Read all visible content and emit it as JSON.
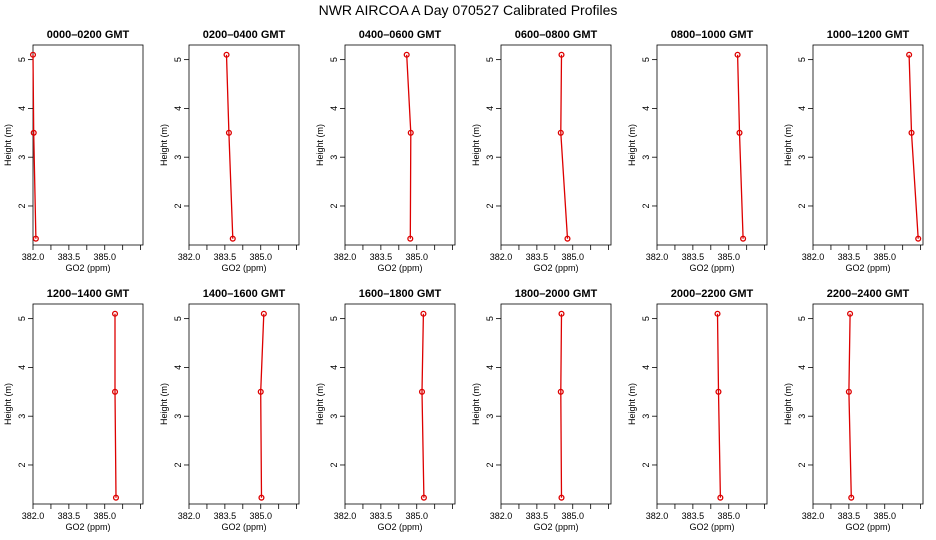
{
  "figure_title": "NWR AIRCOA A  Day 070527  Calibrated Profiles",
  "colors": {
    "series": "#dd0000",
    "axis": "#000000"
  },
  "chart_data": [
    {
      "type": "line",
      "title": "0000–0200 GMT",
      "xlabel": "GO2 (ppm)",
      "ylabel": "Height (m)",
      "xlim": [
        382.0,
        386.6
      ],
      "ylim": [
        1.2,
        5.3
      ],
      "xticks": [
        382.0,
        383.5,
        385.0
      ],
      "xtick_labels": [
        "382.0",
        "383.5",
        "385.0"
      ],
      "yticks": [
        2,
        3,
        4,
        5
      ],
      "ytick_labels": [
        "2",
        "3",
        "4",
        "5"
      ],
      "x": [
        382.0,
        382.03,
        382.12
      ],
      "y": [
        5.1,
        3.5,
        1.33
      ]
    },
    {
      "type": "line",
      "title": "0200–0400 GMT",
      "xlabel": "GO2 (ppm)",
      "ylabel": "Height (m)",
      "xlim": [
        382.0,
        386.6
      ],
      "ylim": [
        1.2,
        5.3
      ],
      "xticks": [
        382.0,
        383.5,
        385.0
      ],
      "xtick_labels": [
        "382.0",
        "383.5",
        "385.0"
      ],
      "yticks": [
        2,
        3,
        4,
        5
      ],
      "ytick_labels": [
        "2",
        "3",
        "4",
        "5"
      ],
      "x": [
        383.57,
        383.67,
        383.83
      ],
      "y": [
        5.1,
        3.5,
        1.33
      ]
    },
    {
      "type": "line",
      "title": "0400–0600 GMT",
      "xlabel": "GO2 (ppm)",
      "ylabel": "Height (m)",
      "xlim": [
        382.0,
        386.6
      ],
      "ylim": [
        1.2,
        5.3
      ],
      "xticks": [
        382.0,
        383.5,
        385.0
      ],
      "xtick_labels": [
        "382.0",
        "383.5",
        "385.0"
      ],
      "yticks": [
        2,
        3,
        4,
        5
      ],
      "ytick_labels": [
        "2",
        "3",
        "4",
        "5"
      ],
      "x": [
        384.58,
        384.75,
        384.73
      ],
      "y": [
        5.1,
        3.5,
        1.33
      ]
    },
    {
      "type": "line",
      "title": "0600–0800 GMT",
      "xlabel": "GO2 (ppm)",
      "ylabel": "Height (m)",
      "xlim": [
        382.0,
        386.6
      ],
      "ylim": [
        1.2,
        5.3
      ],
      "xticks": [
        382.0,
        383.5,
        385.0
      ],
      "xtick_labels": [
        "382.0",
        "383.5",
        "385.0"
      ],
      "yticks": [
        2,
        3,
        4,
        5
      ],
      "ytick_labels": [
        "2",
        "3",
        "4",
        "5"
      ],
      "x": [
        384.53,
        384.5,
        384.78
      ],
      "y": [
        5.1,
        3.5,
        1.33
      ]
    },
    {
      "type": "line",
      "title": "0800–1000 GMT",
      "xlabel": "GO2 (ppm)",
      "ylabel": "Height (m)",
      "xlim": [
        382.0,
        386.6
      ],
      "ylim": [
        1.2,
        5.3
      ],
      "xticks": [
        382.0,
        383.5,
        385.0
      ],
      "xtick_labels": [
        "382.0",
        "383.5",
        "385.0"
      ],
      "yticks": [
        2,
        3,
        4,
        5
      ],
      "ytick_labels": [
        "2",
        "3",
        "4",
        "5"
      ],
      "x": [
        385.37,
        385.45,
        385.6
      ],
      "y": [
        5.1,
        3.5,
        1.33
      ]
    },
    {
      "type": "line",
      "title": "1000–1200 GMT",
      "xlabel": "GO2 (ppm)",
      "ylabel": "Height (m)",
      "xlim": [
        382.0,
        386.6
      ],
      "ylim": [
        1.2,
        5.3
      ],
      "xticks": [
        382.0,
        383.5,
        385.0
      ],
      "xtick_labels": [
        "382.0",
        "383.5",
        "385.0"
      ],
      "yticks": [
        2,
        3,
        4,
        5
      ],
      "ytick_labels": [
        "2",
        "3",
        "4",
        "5"
      ],
      "x": [
        386.02,
        386.12,
        386.4
      ],
      "y": [
        5.1,
        3.5,
        1.33
      ]
    },
    {
      "type": "line",
      "title": "1200–1400 GMT",
      "xlabel": "GO2 (ppm)",
      "ylabel": "Height (m)",
      "xlim": [
        382.0,
        386.6
      ],
      "ylim": [
        1.2,
        5.3
      ],
      "xticks": [
        382.0,
        383.5,
        385.0
      ],
      "xtick_labels": [
        "382.0",
        "383.5",
        "385.0"
      ],
      "yticks": [
        2,
        3,
        4,
        5
      ],
      "ytick_labels": [
        "2",
        "3",
        "4",
        "5"
      ],
      "x": [
        385.43,
        385.43,
        385.47
      ],
      "y": [
        5.1,
        3.5,
        1.33
      ]
    },
    {
      "type": "line",
      "title": "1400–1600 GMT",
      "xlabel": "GO2 (ppm)",
      "ylabel": "Height (m)",
      "xlim": [
        382.0,
        386.6
      ],
      "ylim": [
        1.2,
        5.3
      ],
      "xticks": [
        382.0,
        383.5,
        385.0
      ],
      "xtick_labels": [
        "382.0",
        "383.5",
        "385.0"
      ],
      "yticks": [
        2,
        3,
        4,
        5
      ],
      "ytick_labels": [
        "2",
        "3",
        "4",
        "5"
      ],
      "x": [
        385.13,
        385.0,
        385.03
      ],
      "y": [
        5.1,
        3.5,
        1.33
      ]
    },
    {
      "type": "line",
      "title": "1600–1800 GMT",
      "xlabel": "GO2 (ppm)",
      "ylabel": "Height (m)",
      "xlim": [
        382.0,
        386.6
      ],
      "ylim": [
        1.2,
        5.3
      ],
      "xticks": [
        382.0,
        383.5,
        385.0
      ],
      "xtick_labels": [
        "382.0",
        "383.5",
        "385.0"
      ],
      "yticks": [
        2,
        3,
        4,
        5
      ],
      "ytick_labels": [
        "2",
        "3",
        "4",
        "5"
      ],
      "x": [
        385.28,
        385.22,
        385.3
      ],
      "y": [
        5.1,
        3.5,
        1.33
      ]
    },
    {
      "type": "line",
      "title": "1800–2000 GMT",
      "xlabel": "GO2 (ppm)",
      "ylabel": "Height (m)",
      "xlim": [
        382.0,
        386.6
      ],
      "ylim": [
        1.2,
        5.3
      ],
      "xticks": [
        382.0,
        383.5,
        385.0
      ],
      "xtick_labels": [
        "382.0",
        "383.5",
        "385.0"
      ],
      "yticks": [
        2,
        3,
        4,
        5
      ],
      "ytick_labels": [
        "2",
        "3",
        "4",
        "5"
      ],
      "x": [
        384.53,
        384.5,
        384.53
      ],
      "y": [
        5.1,
        3.5,
        1.33
      ]
    },
    {
      "type": "line",
      "title": "2000–2200 GMT",
      "xlabel": "GO2 (ppm)",
      "ylabel": "Height (m)",
      "xlim": [
        382.0,
        386.6
      ],
      "ylim": [
        1.2,
        5.3
      ],
      "xticks": [
        382.0,
        383.5,
        385.0
      ],
      "xtick_labels": [
        "382.0",
        "383.5",
        "385.0"
      ],
      "yticks": [
        2,
        3,
        4,
        5
      ],
      "ytick_labels": [
        "2",
        "3",
        "4",
        "5"
      ],
      "x": [
        384.53,
        384.57,
        384.65
      ],
      "y": [
        5.1,
        3.5,
        1.33
      ]
    },
    {
      "type": "line",
      "title": "2200–2400 GMT",
      "xlabel": "GO2 (ppm)",
      "ylabel": "Height (m)",
      "xlim": [
        382.0,
        386.6
      ],
      "ylim": [
        1.2,
        5.3
      ],
      "xticks": [
        382.0,
        383.5,
        385.0
      ],
      "xtick_labels": [
        "382.0",
        "383.5",
        "385.0"
      ],
      "yticks": [
        2,
        3,
        4,
        5
      ],
      "ytick_labels": [
        "2",
        "3",
        "4",
        "5"
      ],
      "x": [
        383.55,
        383.5,
        383.6
      ],
      "y": [
        5.1,
        3.5,
        1.33
      ]
    }
  ]
}
